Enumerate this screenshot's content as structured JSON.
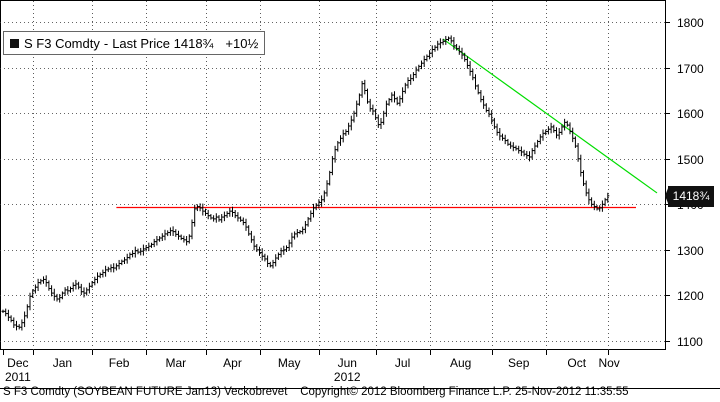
{
  "legend": {
    "ticker": "S F3 Comdty",
    "field": "Last Price",
    "last": "1418¾",
    "change": "+10½",
    "color": "#111111"
  },
  "footer": {
    "left": "S F3 Comdty (SOYBEAN FUTURE   Jan13) Veckobrevet",
    "right": "Copyright© 2012 Bloomberg Finance L.P.   25-Nov-2012 11:35:55"
  },
  "colors": {
    "price": "#000000",
    "support": "#ff0000",
    "resistance": "#00dd00",
    "grid": "#333333"
  },
  "chart_data": {
    "type": "ohlc",
    "ylim": [
      1080,
      1840
    ],
    "yticks": [
      1100,
      1200,
      1300,
      1400,
      1500,
      1600,
      1700,
      1800
    ],
    "grid": true,
    "months": [
      "Dec",
      "Jan",
      "Feb",
      "Mar",
      "Apr",
      "May",
      "Jun",
      "Jul",
      "Aug",
      "Sep",
      "Oct",
      "Nov"
    ],
    "years": [
      {
        "label": "2011",
        "under": "Dec"
      },
      {
        "label": "2012",
        "under": "Jun"
      }
    ],
    "month_start_index": [
      0,
      11,
      33,
      53,
      75,
      95,
      117,
      138,
      158,
      181,
      201,
      224
    ],
    "series": {
      "close": [
        1165,
        1160,
        1152,
        1145,
        1135,
        1132,
        1130,
        1140,
        1155,
        1175,
        1198,
        1210,
        1218,
        1228,
        1232,
        1235,
        1228,
        1215,
        1205,
        1198,
        1192,
        1195,
        1205,
        1212,
        1210,
        1215,
        1222,
        1225,
        1218,
        1208,
        1205,
        1212,
        1220,
        1228,
        1235,
        1242,
        1246,
        1250,
        1256,
        1258,
        1261,
        1260,
        1265,
        1270,
        1275,
        1278,
        1283,
        1290,
        1292,
        1298,
        1295,
        1297,
        1302,
        1305,
        1308,
        1312,
        1318,
        1322,
        1326,
        1330,
        1335,
        1338,
        1342,
        1340,
        1334,
        1330,
        1325,
        1322,
        1318,
        1330,
        1360,
        1390,
        1395,
        1392,
        1385,
        1380,
        1375,
        1370,
        1368,
        1372,
        1366,
        1372,
        1375,
        1380,
        1385,
        1382,
        1375,
        1370,
        1365,
        1360,
        1350,
        1335,
        1322,
        1308,
        1300,
        1294,
        1286,
        1280,
        1270,
        1265,
        1272,
        1282,
        1290,
        1298,
        1300,
        1305,
        1315,
        1328,
        1335,
        1338,
        1340,
        1345,
        1355,
        1368,
        1380,
        1392,
        1398,
        1404,
        1410,
        1425,
        1445,
        1470,
        1500,
        1520,
        1535,
        1545,
        1555,
        1560,
        1572,
        1585,
        1600,
        1620,
        1640,
        1665,
        1650,
        1625,
        1610,
        1605,
        1590,
        1575,
        1580,
        1600,
        1620,
        1630,
        1640,
        1632,
        1622,
        1632,
        1648,
        1662,
        1672,
        1676,
        1685,
        1695,
        1703,
        1710,
        1718,
        1725,
        1732,
        1740,
        1745,
        1752,
        1755,
        1758,
        1762,
        1765,
        1759,
        1748,
        1742,
        1735,
        1728,
        1718,
        1705,
        1692,
        1678,
        1660,
        1645,
        1630,
        1618,
        1606,
        1598,
        1585,
        1570,
        1558,
        1550,
        1545,
        1540,
        1532,
        1528,
        1525,
        1522,
        1518,
        1515,
        1510,
        1507,
        1504,
        1518,
        1528,
        1538,
        1548,
        1556,
        1560,
        1565,
        1570,
        1562,
        1552,
        1558,
        1570,
        1580,
        1574,
        1560,
        1545,
        1528,
        1500,
        1470,
        1445,
        1425,
        1410,
        1400,
        1395,
        1390,
        1392,
        1400,
        1410,
        1418.75
      ]
    },
    "support_line": {
      "x": [
        42,
        230
      ],
      "y": [
        1393,
        1393
      ]
    },
    "resistance_line": {
      "x": [
        163,
        240
      ],
      "y": [
        1763,
        1425
      ]
    },
    "last_price": 1418.75
  }
}
